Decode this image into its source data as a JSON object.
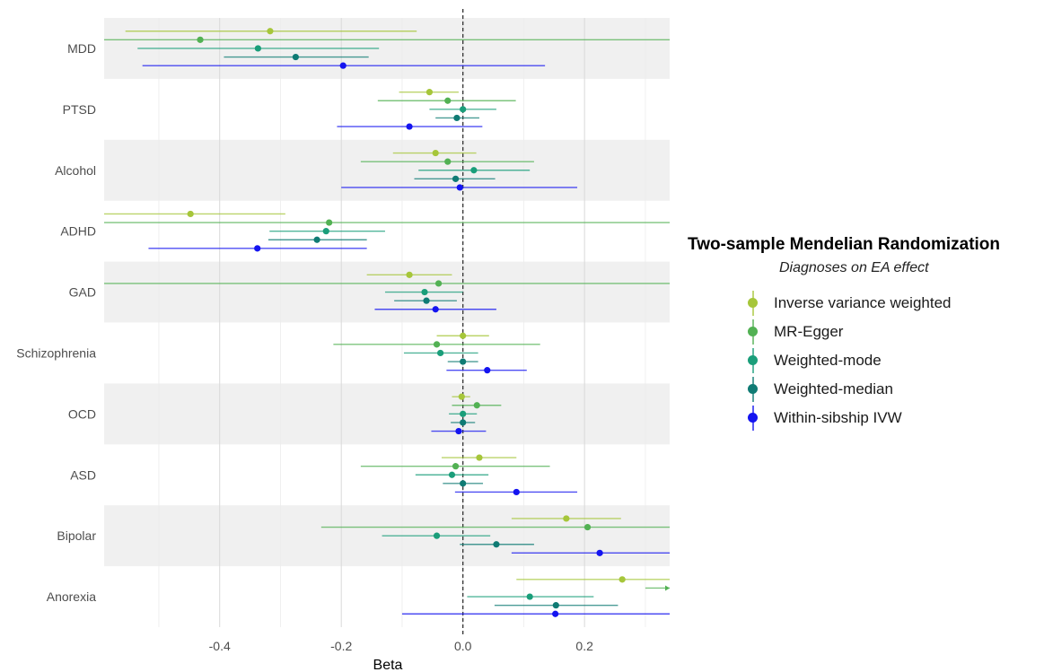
{
  "chart_data": {
    "type": "forest",
    "xlabel": "Beta",
    "ylabel": "",
    "xlim": [
      -0.59,
      0.34
    ],
    "x_ticks": [
      -0.4,
      -0.2,
      0.0,
      0.2
    ],
    "x_tick_labels": [
      "-0.4",
      "-0.2",
      "0.0",
      "0.2"
    ],
    "reference_line": 0,
    "categories": [
      "MDD",
      "PTSD",
      "Alcohol",
      "ADHD",
      "GAD",
      "Schizophrenia",
      "OCD",
      "ASD",
      "Bipolar",
      "Anorexia"
    ],
    "legend": {
      "title": "Two-sample Mendelian Randomization",
      "subtitle": "Diagnoses on EA effect",
      "placement": "right"
    },
    "series": [
      {
        "name": "Inverse variance weighted",
        "color": "#a6c63a",
        "points": [
          {
            "category": "MDD",
            "beta": -0.317,
            "lo": -0.555,
            "hi": -0.076
          },
          {
            "category": "PTSD",
            "beta": -0.055,
            "lo": -0.105,
            "hi": -0.007
          },
          {
            "category": "Alcohol",
            "beta": -0.045,
            "lo": -0.115,
            "hi": 0.022
          },
          {
            "category": "ADHD",
            "beta": -0.448,
            "lo": -0.59,
            "hi": -0.292
          },
          {
            "category": "GAD",
            "beta": -0.088,
            "lo": -0.158,
            "hi": -0.018
          },
          {
            "category": "Schizophrenia",
            "beta": 0.0,
            "lo": -0.043,
            "hi": 0.043
          },
          {
            "category": "OCD",
            "beta": -0.002,
            "lo": -0.018,
            "hi": 0.012
          },
          {
            "category": "ASD",
            "beta": 0.027,
            "lo": -0.035,
            "hi": 0.088
          },
          {
            "category": "Bipolar",
            "beta": 0.17,
            "lo": 0.08,
            "hi": 0.26
          },
          {
            "category": "Anorexia",
            "beta": 0.262,
            "lo": 0.088,
            "hi": 0.34
          }
        ]
      },
      {
        "name": "MR-Egger",
        "color": "#52b153",
        "points": [
          {
            "category": "MDD",
            "beta": -0.432,
            "lo": -0.59,
            "hi": 0.34
          },
          {
            "category": "PTSD",
            "beta": -0.025,
            "lo": -0.14,
            "hi": 0.087
          },
          {
            "category": "Alcohol",
            "beta": -0.025,
            "lo": -0.168,
            "hi": 0.117
          },
          {
            "category": "ADHD",
            "beta": -0.22,
            "lo": -0.59,
            "hi": 0.34
          },
          {
            "category": "GAD",
            "beta": -0.04,
            "lo": -0.59,
            "hi": 0.34
          },
          {
            "category": "Schizophrenia",
            "beta": -0.043,
            "lo": -0.213,
            "hi": 0.127
          },
          {
            "category": "OCD",
            "beta": 0.023,
            "lo": -0.018,
            "hi": 0.063
          },
          {
            "category": "ASD",
            "beta": -0.012,
            "lo": -0.168,
            "hi": 0.143
          },
          {
            "category": "Bipolar",
            "beta": 0.205,
            "lo": -0.233,
            "hi": 0.34
          },
          {
            "category": "Anorexia",
            "beta": 0.34,
            "lo": 0.3,
            "hi": 0.34
          }
        ]
      },
      {
        "name": "Weighted-mode",
        "color": "#1a9e7a",
        "points": [
          {
            "category": "MDD",
            "beta": -0.337,
            "lo": -0.535,
            "hi": -0.138
          },
          {
            "category": "PTSD",
            "beta": 0.0,
            "lo": -0.055,
            "hi": 0.055
          },
          {
            "category": "Alcohol",
            "beta": 0.018,
            "lo": -0.073,
            "hi": 0.11
          },
          {
            "category": "ADHD",
            "beta": -0.225,
            "lo": -0.318,
            "hi": -0.128
          },
          {
            "category": "GAD",
            "beta": -0.063,
            "lo": -0.128,
            "hi": 0.0
          },
          {
            "category": "Schizophrenia",
            "beta": -0.037,
            "lo": -0.097,
            "hi": 0.025
          },
          {
            "category": "OCD",
            "beta": 0.0,
            "lo": -0.023,
            "hi": 0.023
          },
          {
            "category": "ASD",
            "beta": -0.018,
            "lo": -0.078,
            "hi": 0.042
          },
          {
            "category": "Bipolar",
            "beta": -0.043,
            "lo": -0.133,
            "hi": 0.045
          },
          {
            "category": "Anorexia",
            "beta": 0.11,
            "lo": 0.007,
            "hi": 0.215
          }
        ]
      },
      {
        "name": "Weighted-median",
        "color": "#0f7b74",
        "points": [
          {
            "category": "MDD",
            "beta": -0.275,
            "lo": -0.393,
            "hi": -0.155
          },
          {
            "category": "PTSD",
            "beta": -0.01,
            "lo": -0.045,
            "hi": 0.027
          },
          {
            "category": "Alcohol",
            "beta": -0.012,
            "lo": -0.08,
            "hi": 0.053
          },
          {
            "category": "ADHD",
            "beta": -0.24,
            "lo": -0.32,
            "hi": -0.158
          },
          {
            "category": "GAD",
            "beta": -0.06,
            "lo": -0.113,
            "hi": -0.01
          },
          {
            "category": "Schizophrenia",
            "beta": 0.0,
            "lo": -0.025,
            "hi": 0.025
          },
          {
            "category": "OCD",
            "beta": 0.0,
            "lo": -0.02,
            "hi": 0.02
          },
          {
            "category": "ASD",
            "beta": 0.0,
            "lo": -0.033,
            "hi": 0.033
          },
          {
            "category": "Bipolar",
            "beta": 0.055,
            "lo": -0.005,
            "hi": 0.117
          },
          {
            "category": "Anorexia",
            "beta": 0.153,
            "lo": 0.052,
            "hi": 0.255
          }
        ]
      },
      {
        "name": "Within-sibship IVW",
        "color": "#1414f0",
        "points": [
          {
            "category": "MDD",
            "beta": -0.197,
            "lo": -0.527,
            "hi": 0.135
          },
          {
            "category": "PTSD",
            "beta": -0.088,
            "lo": -0.207,
            "hi": 0.032
          },
          {
            "category": "Alcohol",
            "beta": -0.005,
            "lo": -0.2,
            "hi": 0.188
          },
          {
            "category": "ADHD",
            "beta": -0.338,
            "lo": -0.517,
            "hi": -0.158
          },
          {
            "category": "GAD",
            "beta": -0.045,
            "lo": -0.145,
            "hi": 0.055
          },
          {
            "category": "Schizophrenia",
            "beta": 0.04,
            "lo": -0.027,
            "hi": 0.105
          },
          {
            "category": "OCD",
            "beta": -0.007,
            "lo": -0.052,
            "hi": 0.038
          },
          {
            "category": "ASD",
            "beta": 0.088,
            "lo": -0.013,
            "hi": 0.188
          },
          {
            "category": "Bipolar",
            "beta": 0.225,
            "lo": 0.08,
            "hi": 0.34
          },
          {
            "category": "Anorexia",
            "beta": 0.152,
            "lo": -0.1,
            "hi": 0.34
          }
        ]
      }
    ]
  }
}
